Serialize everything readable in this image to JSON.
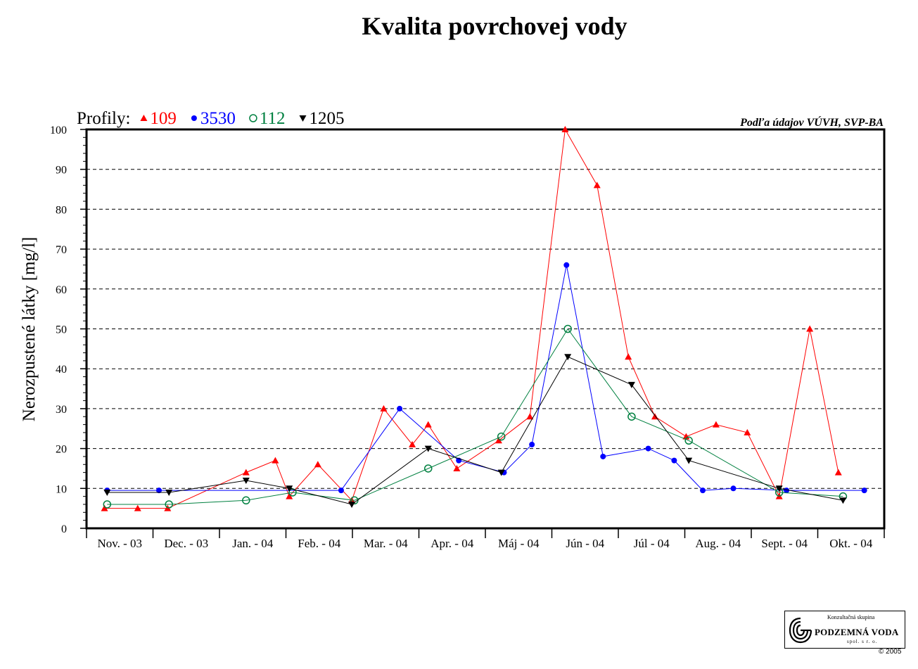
{
  "chart_data": {
    "type": "line",
    "title": "Kvalita povrchovej vody",
    "ylabel": "Nerozpustené látky [mg/l]",
    "source_note": "Podľa údajov VÚVH, SVP-BA",
    "legend_prefix": "Profily:",
    "ylim": [
      0,
      100
    ],
    "yticks": [
      "0",
      "10",
      "20",
      "30",
      "40",
      "50",
      "60",
      "70",
      "80",
      "90",
      "100"
    ],
    "grid": true,
    "x_unit": "month index (0 = Nov. - 03)",
    "xlim": [
      0,
      12
    ],
    "categories": [
      "Nov. - 03",
      "Dec. - 03",
      "Jan. - 04",
      "Feb. - 04",
      "Mar. - 04",
      "Apr. - 04",
      "Máj - 04",
      "Jún - 04",
      "Júl - 04",
      "Aug. - 04",
      "Sept. - 04",
      "Okt. - 04"
    ],
    "series": [
      {
        "name": "109",
        "color": "#ff0000",
        "marker": "triangle-up",
        "points": [
          [
            0.27,
            5
          ],
          [
            0.77,
            5
          ],
          [
            1.22,
            5
          ],
          [
            2.4,
            14
          ],
          [
            2.84,
            17
          ],
          [
            3.05,
            8
          ],
          [
            3.48,
            16
          ],
          [
            3.99,
            7
          ],
          [
            4.47,
            30
          ],
          [
            4.9,
            21
          ],
          [
            5.14,
            26
          ],
          [
            5.57,
            15
          ],
          [
            6.2,
            22
          ],
          [
            6.67,
            28
          ],
          [
            7.2,
            100
          ],
          [
            7.68,
            86
          ],
          [
            8.15,
            43
          ],
          [
            8.55,
            28
          ],
          [
            9.02,
            23
          ],
          [
            9.47,
            26
          ],
          [
            9.94,
            24
          ],
          [
            10.42,
            8
          ],
          [
            10.88,
            50
          ],
          [
            11.31,
            14
          ]
        ]
      },
      {
        "name": "3530",
        "color": "#0000ff",
        "marker": "circle",
        "points": [
          [
            0.31,
            9.5
          ],
          [
            1.09,
            9.5
          ],
          [
            3.83,
            9.5
          ],
          [
            4.71,
            30
          ],
          [
            5.6,
            17
          ],
          [
            6.28,
            14
          ],
          [
            6.7,
            21
          ],
          [
            7.22,
            66
          ],
          [
            7.77,
            18
          ],
          [
            8.45,
            20
          ],
          [
            8.84,
            17
          ],
          [
            9.27,
            9.5
          ],
          [
            9.73,
            10
          ],
          [
            10.53,
            9.5
          ],
          [
            11.7,
            9.5
          ]
        ]
      },
      {
        "name": "112",
        "color": "#008040",
        "marker": "circle-open",
        "points": [
          [
            0.31,
            6
          ],
          [
            1.24,
            6
          ],
          [
            2.4,
            7
          ],
          [
            3.1,
            9
          ],
          [
            4.03,
            7
          ],
          [
            5.14,
            15
          ],
          [
            6.24,
            23
          ],
          [
            7.24,
            50
          ],
          [
            8.2,
            28
          ],
          [
            9.06,
            22
          ],
          [
            10.42,
            9
          ],
          [
            11.38,
            8
          ]
        ]
      },
      {
        "name": "1205",
        "color": "#000000",
        "marker": "triangle-down",
        "points": [
          [
            0.31,
            9
          ],
          [
            1.24,
            9
          ],
          [
            2.4,
            12
          ],
          [
            3.05,
            10
          ],
          [
            3.99,
            6
          ],
          [
            5.14,
            20
          ],
          [
            6.24,
            14
          ],
          [
            7.24,
            43
          ],
          [
            8.2,
            36
          ],
          [
            9.06,
            17
          ],
          [
            10.42,
            10
          ],
          [
            11.38,
            7
          ]
        ]
      }
    ]
  },
  "logo": {
    "line1": "Konzultačná skupina",
    "line2": "PODZEMNÁ VODA",
    "line3": "spol. s r. o."
  },
  "copyright": "© 2005"
}
